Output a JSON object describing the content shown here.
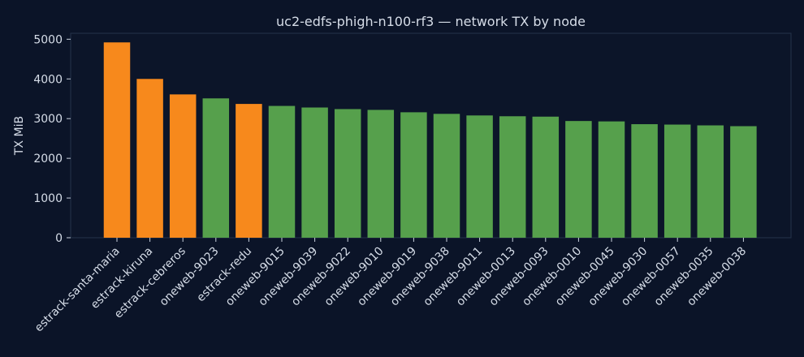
{
  "chart_data": {
    "type": "bar",
    "title": "uc2-edfs-phigh-n100-rf3 — network TX by node",
    "xlabel": "",
    "ylabel": "TX MiB",
    "ylim": [
      0,
      5150
    ],
    "yticks": [
      0,
      1000,
      2000,
      3000,
      4000,
      5000
    ],
    "grid": false,
    "categories": [
      "estrack-santa-maria",
      "estrack-kiruna",
      "estrack-cebreros",
      "oneweb-9023",
      "estrack-redu",
      "oneweb-9015",
      "oneweb-9039",
      "oneweb-9022",
      "oneweb-9010",
      "oneweb-9019",
      "oneweb-9038",
      "oneweb-9011",
      "oneweb-0013",
      "oneweb-0093",
      "oneweb-0010",
      "oneweb-0045",
      "oneweb-9030",
      "oneweb-0057",
      "oneweb-0035",
      "oneweb-0038"
    ],
    "values": [
      4920,
      4000,
      3610,
      3510,
      3370,
      3320,
      3280,
      3240,
      3220,
      3160,
      3120,
      3080,
      3060,
      3050,
      2940,
      2930,
      2860,
      2850,
      2830,
      2810
    ],
    "bar_groups": [
      "estrack",
      "estrack",
      "estrack",
      "oneweb",
      "estrack",
      "oneweb",
      "oneweb",
      "oneweb",
      "oneweb",
      "oneweb",
      "oneweb",
      "oneweb",
      "oneweb",
      "oneweb",
      "oneweb",
      "oneweb",
      "oneweb",
      "oneweb",
      "oneweb",
      "oneweb"
    ],
    "colors": {
      "estrack": "#f7891c",
      "oneweb": "#56a04c",
      "background": "#0b1428",
      "plot_background": "#0c1529",
      "text": "#d6dde8"
    }
  }
}
